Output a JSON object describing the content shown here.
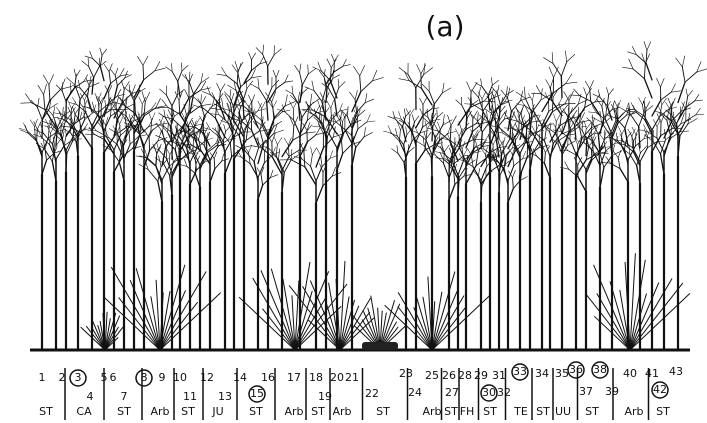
{
  "caption": "(a)",
  "tree_numbers": [
    {
      "label": "1",
      "circled": false
    },
    {
      "label": "2",
      "circled": false
    },
    {
      "label": "3",
      "circled": true
    },
    {
      "label": "4",
      "circled": false
    },
    {
      "label": "5",
      "circled": false
    },
    {
      "label": "6",
      "circled": false
    },
    {
      "label": "7",
      "circled": false
    },
    {
      "label": "8",
      "circled": true
    },
    {
      "label": "9",
      "circled": false
    },
    {
      "label": "10",
      "circled": false
    },
    {
      "label": "11",
      "circled": false
    },
    {
      "label": "12",
      "circled": false
    },
    {
      "label": "13",
      "circled": false
    },
    {
      "label": "14",
      "circled": false
    },
    {
      "label": "15",
      "circled": true
    },
    {
      "label": "16",
      "circled": false
    },
    {
      "label": "17",
      "circled": false
    },
    {
      "label": "18",
      "circled": false
    },
    {
      "label": "19",
      "circled": false
    },
    {
      "label": "20",
      "circled": false
    },
    {
      "label": "21",
      "circled": false
    },
    {
      "label": "22",
      "circled": false
    },
    {
      "label": "23",
      "circled": false
    },
    {
      "label": "24",
      "circled": false
    },
    {
      "label": "25",
      "circled": false
    },
    {
      "label": "26",
      "circled": false
    },
    {
      "label": "27",
      "circled": false
    },
    {
      "label": "28",
      "circled": false
    },
    {
      "label": "29",
      "circled": false
    },
    {
      "label": "30",
      "circled": true
    },
    {
      "label": "31",
      "circled": false
    },
    {
      "label": "32",
      "circled": false
    },
    {
      "label": "33",
      "circled": true
    },
    {
      "label": "34",
      "circled": false
    },
    {
      "label": "35",
      "circled": false
    },
    {
      "label": "36",
      "circled": true
    },
    {
      "label": "37",
      "circled": false
    },
    {
      "label": "38",
      "circled": true
    },
    {
      "label": "39",
      "circled": false
    },
    {
      "label": "40",
      "circled": false
    },
    {
      "label": "41",
      "circled": false
    },
    {
      "label": "42",
      "circled": true
    },
    {
      "label": "43",
      "circled": false
    }
  ],
  "species_groups": [
    "ST",
    "CA",
    "ST",
    "Arb",
    "ST",
    "JU",
    "ST",
    "Arb",
    "ST",
    "Arb",
    "ST",
    "Arb",
    "ST",
    "FH",
    "ST",
    "TE",
    "ST",
    "UU",
    "ST",
    "Arb",
    "ST"
  ]
}
